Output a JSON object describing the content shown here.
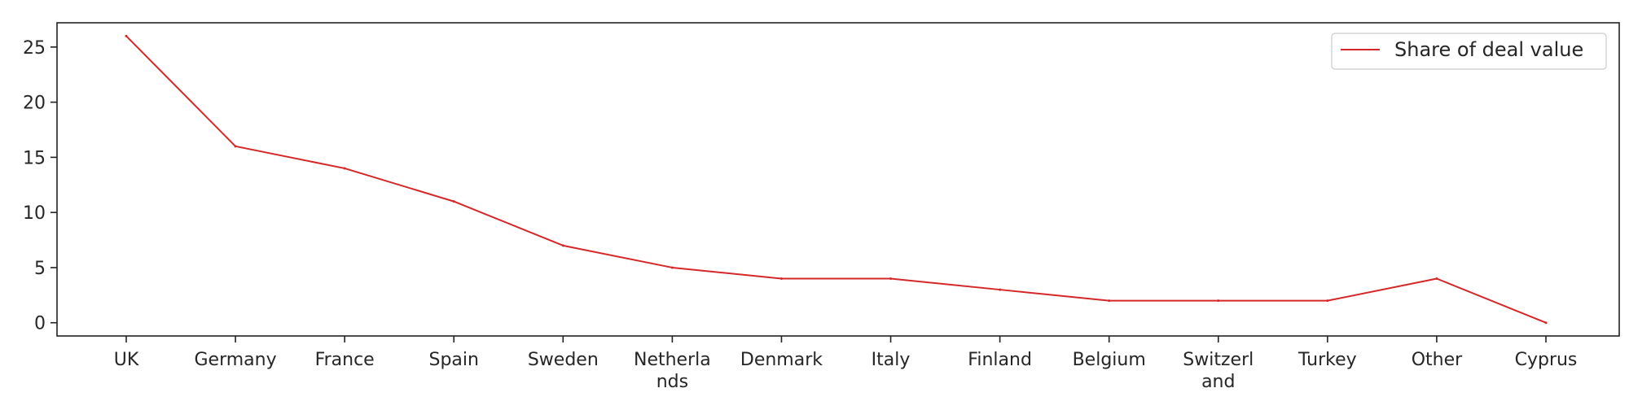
{
  "chart_data": {
    "type": "line",
    "title": "",
    "xlabel": "",
    "ylabel": "",
    "categories": [
      "UK",
      "Germany",
      "France",
      "Spain",
      "Sweden",
      "Netherlands",
      "Denmark",
      "Italy",
      "Finland",
      "Belgium",
      "Switzerland",
      "Turkey",
      "Other",
      "Cyprus"
    ],
    "category_labels": [
      [
        "UK"
      ],
      [
        "Germany"
      ],
      [
        "France"
      ],
      [
        "Spain"
      ],
      [
        "Sweden"
      ],
      [
        "Netherla",
        "nds"
      ],
      [
        "Denmark"
      ],
      [
        "Italy"
      ],
      [
        "Finland"
      ],
      [
        "Belgium"
      ],
      [
        "Switzerl",
        "and"
      ],
      [
        "Turkey"
      ],
      [
        "Other"
      ],
      [
        "Cyprus"
      ]
    ],
    "series": [
      {
        "name": "Share of deal value",
        "color": "#d62728",
        "values": [
          26,
          16,
          14,
          11,
          7,
          5,
          4,
          4,
          3,
          2,
          2,
          2,
          4,
          0
        ]
      }
    ],
    "ylim": [
      -1.2,
      27.2
    ],
    "yticks": [
      0,
      5,
      10,
      15,
      20,
      25
    ],
    "grid": false,
    "legend_position": "top-right"
  }
}
